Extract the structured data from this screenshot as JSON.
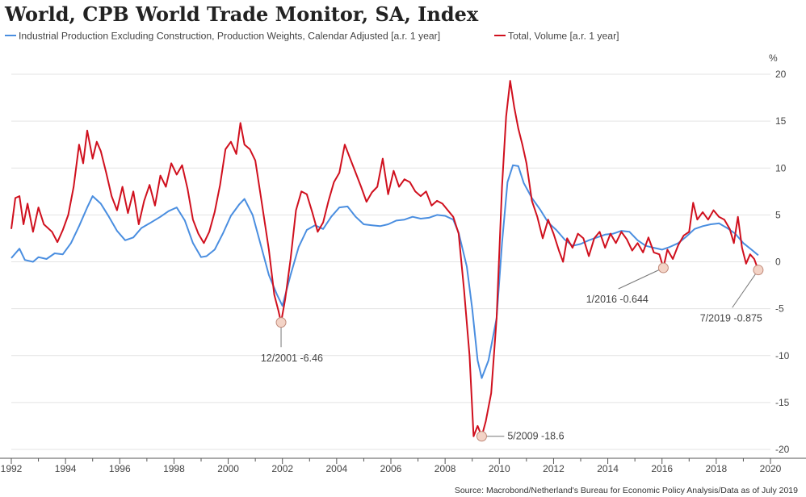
{
  "colors": {
    "industrial": "#4a8ee0",
    "trade": "#d0101e",
    "grid": "#e3e3e3",
    "axis": "#555555",
    "text": "#444444",
    "marker_fill": "#f3d3c6",
    "marker_stroke": "#c08a7a"
  },
  "chart_data": {
    "type": "line",
    "title": "World, CPB World Trade Monitor, SA, Index",
    "ylabel": "%",
    "y_ticks": [
      20,
      15,
      10,
      5,
      0,
      -5,
      -10,
      -15,
      -20
    ],
    "x_ticks": [
      1992,
      1994,
      1996,
      1998,
      2000,
      2002,
      2004,
      2006,
      2008,
      2010,
      2012,
      2014,
      2016,
      2018,
      2020
    ],
    "xlim": [
      1992,
      2020
    ],
    "ylim": [
      -20.5,
      21
    ],
    "legend_position": "top-left",
    "grid": true,
    "source": "Source: Macrobond/Netherland's Bureau for Economic Policy Analysis/Data as of July 2019",
    "series": [
      {
        "name": "Industrial Production Excluding Construction, Production Weights, Calendar Adjusted [a.r. 1 year]",
        "color_key": "industrial",
        "points": [
          [
            1992.0,
            0.4
          ],
          [
            1992.3,
            1.4
          ],
          [
            1992.5,
            0.2
          ],
          [
            1992.8,
            0.0
          ],
          [
            1993.0,
            0.5
          ],
          [
            1993.3,
            0.3
          ],
          [
            1993.6,
            0.9
          ],
          [
            1993.9,
            0.8
          ],
          [
            1994.2,
            2.0
          ],
          [
            1994.5,
            3.8
          ],
          [
            1994.8,
            5.8
          ],
          [
            1995.0,
            7.0
          ],
          [
            1995.3,
            6.2
          ],
          [
            1995.6,
            4.8
          ],
          [
            1995.9,
            3.3
          ],
          [
            1996.2,
            2.3
          ],
          [
            1996.5,
            2.6
          ],
          [
            1996.8,
            3.6
          ],
          [
            1997.1,
            4.1
          ],
          [
            1997.5,
            4.8
          ],
          [
            1997.8,
            5.4
          ],
          [
            1998.1,
            5.8
          ],
          [
            1998.4,
            4.4
          ],
          [
            1998.7,
            2.0
          ],
          [
            1999.0,
            0.5
          ],
          [
            1999.2,
            0.6
          ],
          [
            1999.5,
            1.3
          ],
          [
            1999.8,
            3.0
          ],
          [
            2000.1,
            4.9
          ],
          [
            2000.4,
            6.1
          ],
          [
            2000.6,
            6.7
          ],
          [
            2000.9,
            5.0
          ],
          [
            2001.2,
            1.8
          ],
          [
            2001.5,
            -1.4
          ],
          [
            2001.8,
            -3.5
          ],
          [
            2002.0,
            -4.7
          ],
          [
            2002.3,
            -1.4
          ],
          [
            2002.6,
            1.6
          ],
          [
            2002.9,
            3.4
          ],
          [
            2003.2,
            3.9
          ],
          [
            2003.5,
            3.5
          ],
          [
            2003.8,
            4.8
          ],
          [
            2004.1,
            5.8
          ],
          [
            2004.4,
            5.9
          ],
          [
            2004.7,
            4.8
          ],
          [
            2005.0,
            4.0
          ],
          [
            2005.3,
            3.9
          ],
          [
            2005.6,
            3.8
          ],
          [
            2005.9,
            4.0
          ],
          [
            2006.2,
            4.4
          ],
          [
            2006.5,
            4.5
          ],
          [
            2006.8,
            4.8
          ],
          [
            2007.1,
            4.6
          ],
          [
            2007.4,
            4.7
          ],
          [
            2007.7,
            5.0
          ],
          [
            2008.0,
            4.9
          ],
          [
            2008.3,
            4.5
          ],
          [
            2008.5,
            3.1
          ],
          [
            2008.8,
            -0.5
          ],
          [
            2009.0,
            -5.0
          ],
          [
            2009.2,
            -10.5
          ],
          [
            2009.35,
            -12.4
          ],
          [
            2009.6,
            -10.5
          ],
          [
            2009.9,
            -6.0
          ],
          [
            2010.1,
            2.0
          ],
          [
            2010.3,
            8.5
          ],
          [
            2010.5,
            10.3
          ],
          [
            2010.7,
            10.2
          ],
          [
            2010.9,
            8.4
          ],
          [
            2011.2,
            6.8
          ],
          [
            2011.5,
            5.6
          ],
          [
            2011.8,
            4.2
          ],
          [
            2012.1,
            3.4
          ],
          [
            2012.4,
            2.4
          ],
          [
            2012.7,
            1.7
          ],
          [
            2013.0,
            1.9
          ],
          [
            2013.3,
            2.3
          ],
          [
            2013.6,
            2.6
          ],
          [
            2013.9,
            2.9
          ],
          [
            2014.2,
            3.0
          ],
          [
            2014.5,
            3.3
          ],
          [
            2014.8,
            3.2
          ],
          [
            2015.1,
            2.3
          ],
          [
            2015.4,
            1.7
          ],
          [
            2015.7,
            1.5
          ],
          [
            2016.0,
            1.3
          ],
          [
            2016.3,
            1.6
          ],
          [
            2016.6,
            2.0
          ],
          [
            2016.9,
            2.7
          ],
          [
            2017.2,
            3.5
          ],
          [
            2017.5,
            3.8
          ],
          [
            2017.8,
            4.0
          ],
          [
            2018.1,
            4.1
          ],
          [
            2018.4,
            3.6
          ],
          [
            2018.7,
            3.0
          ],
          [
            2019.0,
            2.0
          ],
          [
            2019.3,
            1.3
          ],
          [
            2019.55,
            0.7
          ]
        ]
      },
      {
        "name": "Total, Volume [a.r. 1 year]",
        "color_key": "trade",
        "points": [
          [
            1992.0,
            3.5
          ],
          [
            1992.15,
            6.8
          ],
          [
            1992.3,
            7.0
          ],
          [
            1992.45,
            4.0
          ],
          [
            1992.6,
            6.2
          ],
          [
            1992.8,
            3.2
          ],
          [
            1993.0,
            5.8
          ],
          [
            1993.2,
            4.0
          ],
          [
            1993.5,
            3.2
          ],
          [
            1993.7,
            2.1
          ],
          [
            1993.9,
            3.4
          ],
          [
            1994.1,
            5.0
          ],
          [
            1994.3,
            8.0
          ],
          [
            1994.5,
            12.5
          ],
          [
            1994.65,
            10.5
          ],
          [
            1994.8,
            14.0
          ],
          [
            1995.0,
            11.0
          ],
          [
            1995.15,
            12.8
          ],
          [
            1995.3,
            11.8
          ],
          [
            1995.5,
            9.5
          ],
          [
            1995.7,
            7.0
          ],
          [
            1995.9,
            5.5
          ],
          [
            1996.1,
            8.0
          ],
          [
            1996.3,
            5.2
          ],
          [
            1996.5,
            7.5
          ],
          [
            1996.7,
            4.0
          ],
          [
            1996.9,
            6.5
          ],
          [
            1997.1,
            8.2
          ],
          [
            1997.3,
            6.0
          ],
          [
            1997.5,
            9.2
          ],
          [
            1997.7,
            8.0
          ],
          [
            1997.9,
            10.5
          ],
          [
            1998.1,
            9.3
          ],
          [
            1998.3,
            10.3
          ],
          [
            1998.5,
            7.8
          ],
          [
            1998.7,
            4.5
          ],
          [
            1998.9,
            3.0
          ],
          [
            1999.1,
            2.0
          ],
          [
            1999.3,
            3.2
          ],
          [
            1999.5,
            5.3
          ],
          [
            1999.7,
            8.2
          ],
          [
            1999.9,
            12.0
          ],
          [
            2000.1,
            12.8
          ],
          [
            2000.3,
            11.5
          ],
          [
            2000.45,
            14.8
          ],
          [
            2000.6,
            12.5
          ],
          [
            2000.8,
            12.0
          ],
          [
            2001.0,
            10.8
          ],
          [
            2001.2,
            7.0
          ],
          [
            2001.5,
            1.3
          ],
          [
            2001.7,
            -3.5
          ],
          [
            2001.85,
            -5.2
          ],
          [
            2001.95,
            -6.46
          ],
          [
            2002.1,
            -4.0
          ],
          [
            2002.3,
            0.3
          ],
          [
            2002.5,
            5.5
          ],
          [
            2002.7,
            7.5
          ],
          [
            2002.9,
            7.2
          ],
          [
            2003.1,
            5.3
          ],
          [
            2003.3,
            3.2
          ],
          [
            2003.5,
            4.2
          ],
          [
            2003.7,
            6.5
          ],
          [
            2003.9,
            8.5
          ],
          [
            2004.1,
            9.5
          ],
          [
            2004.3,
            12.5
          ],
          [
            2004.5,
            11.0
          ],
          [
            2004.7,
            9.5
          ],
          [
            2004.9,
            8.0
          ],
          [
            2005.1,
            6.4
          ],
          [
            2005.3,
            7.4
          ],
          [
            2005.5,
            8.0
          ],
          [
            2005.7,
            11.0
          ],
          [
            2005.9,
            7.2
          ],
          [
            2006.1,
            9.7
          ],
          [
            2006.3,
            8.0
          ],
          [
            2006.5,
            8.8
          ],
          [
            2006.7,
            8.5
          ],
          [
            2006.9,
            7.5
          ],
          [
            2007.1,
            7.0
          ],
          [
            2007.3,
            7.5
          ],
          [
            2007.5,
            6.0
          ],
          [
            2007.7,
            6.5
          ],
          [
            2007.9,
            6.2
          ],
          [
            2008.1,
            5.5
          ],
          [
            2008.3,
            4.8
          ],
          [
            2008.5,
            3.0
          ],
          [
            2008.7,
            -3.0
          ],
          [
            2008.9,
            -10.0
          ],
          [
            2009.05,
            -18.6
          ],
          [
            2009.2,
            -17.5
          ],
          [
            2009.35,
            -18.6
          ],
          [
            2009.5,
            -17.0
          ],
          [
            2009.7,
            -14.0
          ],
          [
            2009.9,
            -6.0
          ],
          [
            2010.1,
            8.0
          ],
          [
            2010.25,
            15.5
          ],
          [
            2010.4,
            19.3
          ],
          [
            2010.55,
            16.5
          ],
          [
            2010.7,
            14.2
          ],
          [
            2010.85,
            12.5
          ],
          [
            2011.0,
            10.5
          ],
          [
            2011.2,
            6.5
          ],
          [
            2011.4,
            4.8
          ],
          [
            2011.6,
            2.5
          ],
          [
            2011.8,
            4.5
          ],
          [
            2012.0,
            3.0
          ],
          [
            2012.2,
            1.2
          ],
          [
            2012.35,
            0.0
          ],
          [
            2012.5,
            2.5
          ],
          [
            2012.7,
            1.5
          ],
          [
            2012.9,
            3.0
          ],
          [
            2013.1,
            2.5
          ],
          [
            2013.3,
            0.6
          ],
          [
            2013.5,
            2.5
          ],
          [
            2013.7,
            3.2
          ],
          [
            2013.9,
            1.5
          ],
          [
            2014.1,
            3.0
          ],
          [
            2014.3,
            2.0
          ],
          [
            2014.5,
            3.2
          ],
          [
            2014.7,
            2.4
          ],
          [
            2014.9,
            1.2
          ],
          [
            2015.1,
            2.0
          ],
          [
            2015.3,
            1.0
          ],
          [
            2015.5,
            2.6
          ],
          [
            2015.7,
            1.0
          ],
          [
            2015.9,
            0.8
          ],
          [
            2016.05,
            -0.644
          ],
          [
            2016.2,
            1.3
          ],
          [
            2016.4,
            0.3
          ],
          [
            2016.6,
            1.8
          ],
          [
            2016.8,
            2.8
          ],
          [
            2017.0,
            3.2
          ],
          [
            2017.15,
            6.3
          ],
          [
            2017.3,
            4.5
          ],
          [
            2017.5,
            5.3
          ],
          [
            2017.7,
            4.5
          ],
          [
            2017.9,
            5.5
          ],
          [
            2018.1,
            4.8
          ],
          [
            2018.3,
            4.5
          ],
          [
            2018.5,
            3.5
          ],
          [
            2018.65,
            2.0
          ],
          [
            2018.8,
            4.8
          ],
          [
            2018.95,
            1.5
          ],
          [
            2019.1,
            -0.2
          ],
          [
            2019.25,
            0.8
          ],
          [
            2019.4,
            0.3
          ],
          [
            2019.55,
            -0.875
          ]
        ]
      }
    ],
    "annotations": [
      {
        "label": "12/2001 -6.46",
        "x": 2001.95,
        "y": -6.46,
        "label_x": 2001.2,
        "label_y": -10.3,
        "anchor": "start"
      },
      {
        "label": "5/2009 -18.6",
        "x": 2009.35,
        "y": -18.6,
        "label_x": 2010.3,
        "label_y": -18.6,
        "anchor": "start"
      },
      {
        "label": "1/2016 -0.644",
        "x": 2016.05,
        "y": -0.644,
        "label_x": 2013.2,
        "label_y": -4.0,
        "anchor": "start"
      },
      {
        "label": "7/2019 -0.875",
        "x": 2019.55,
        "y": -0.875,
        "label_x": 2017.4,
        "label_y": -6.0,
        "anchor": "start"
      }
    ]
  }
}
